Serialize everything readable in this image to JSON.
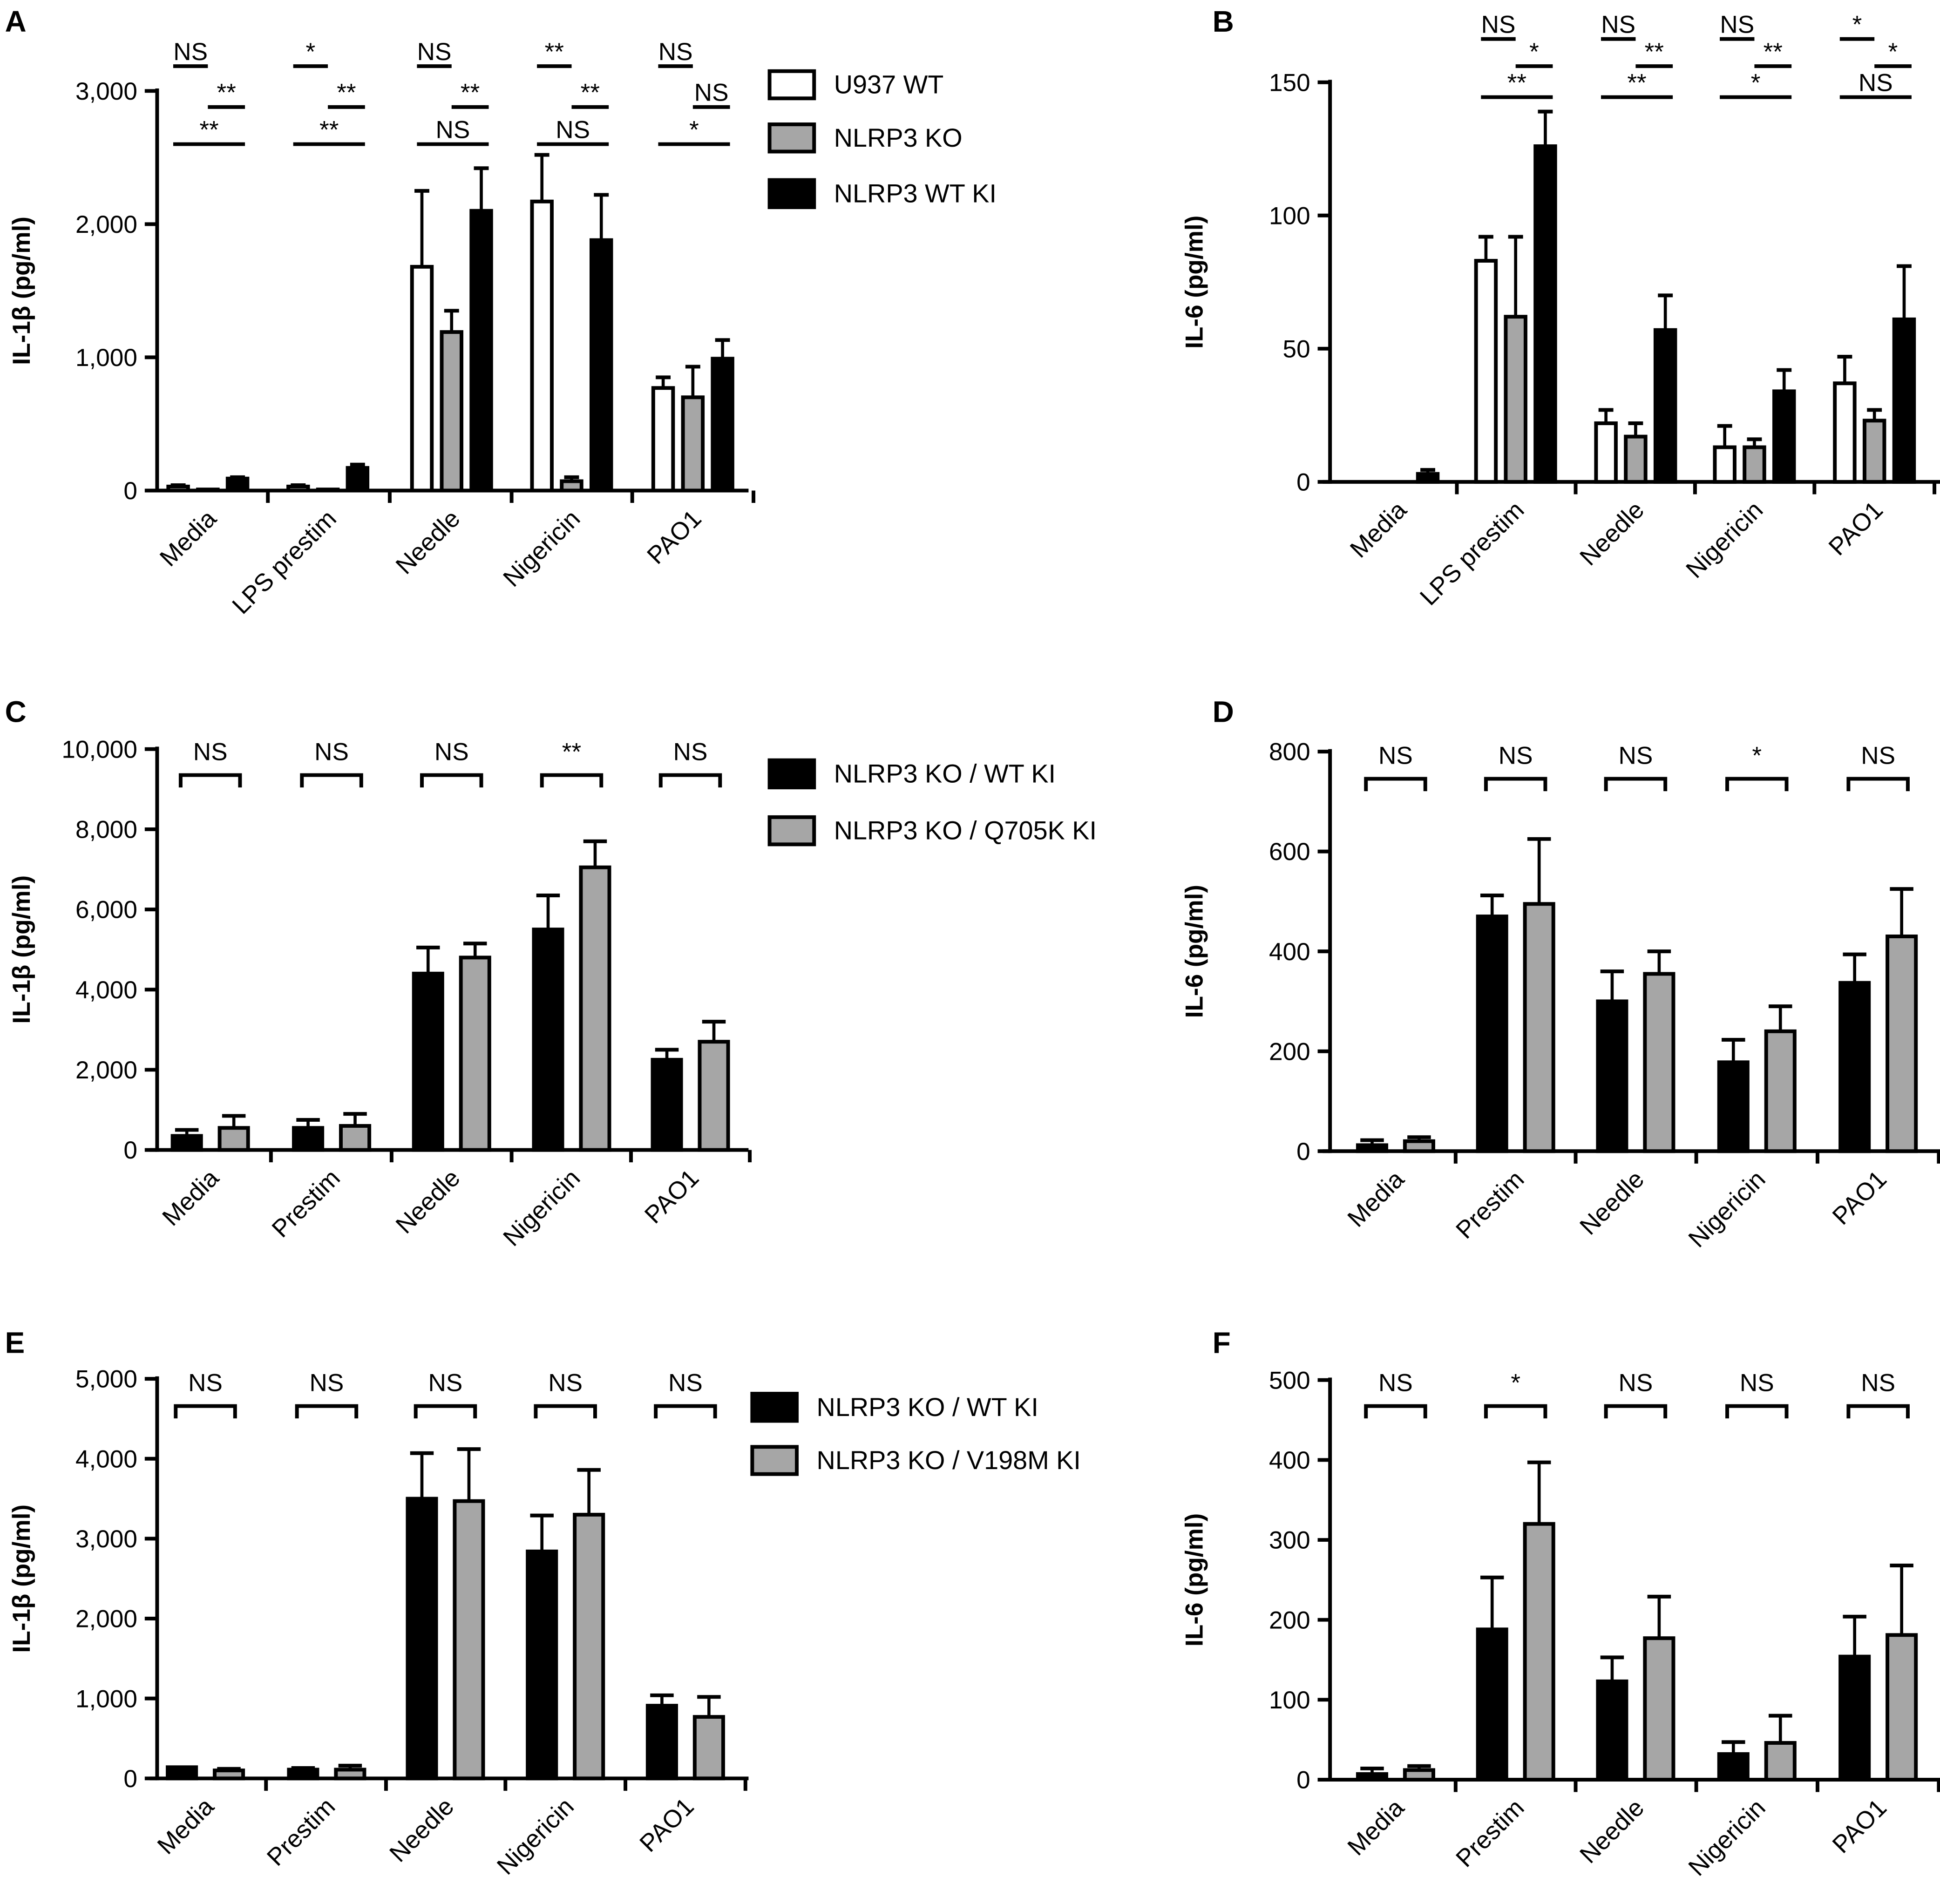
{
  "chart_data": [
    {
      "panel": "A",
      "type": "bar",
      "ylabel": "IL-1β (pg/ml)",
      "ylim": [
        0,
        3000
      ],
      "yticks": [
        "0",
        "1,000",
        "2,000",
        "3,000"
      ],
      "ytick_values": [
        0,
        1000,
        2000,
        3000
      ],
      "categories": [
        "Media",
        "LPS prestim",
        "Needle",
        "Nigericin",
        "PAO1"
      ],
      "series": [
        {
          "name": "U937 WT",
          "color": "#ffffff",
          "values": [
            30,
            30,
            1680,
            2170,
            770
          ],
          "errors": [
            10,
            10,
            570,
            350,
            80
          ]
        },
        {
          "name": "NLRP3 KO",
          "color": "#a6a6a6",
          "values": [
            8,
            8,
            1190,
            70,
            700
          ],
          "errors": [
            0,
            0,
            160,
            30,
            230
          ]
        },
        {
          "name": "NLRP3 WT KI",
          "color": "#000000",
          "values": [
            90,
            170,
            2100,
            1880,
            990
          ],
          "errors": [
            10,
            25,
            320,
            340,
            140
          ]
        }
      ],
      "significance_style": "triple",
      "significance": [
        [
          "NS",
          "**",
          "**"
        ],
        [
          "*",
          "**",
          "**"
        ],
        [
          "NS",
          "**",
          "NS"
        ],
        [
          "**",
          "**",
          "NS"
        ],
        [
          "NS",
          "NS",
          "*"
        ]
      ],
      "legend": true
    },
    {
      "panel": "B",
      "type": "bar",
      "ylabel": "IL-6 (pg/ml)",
      "ylim": [
        0,
        150
      ],
      "yticks": [
        "0",
        "50",
        "100",
        "150"
      ],
      "ytick_values": [
        0,
        50,
        100,
        150
      ],
      "categories": [
        "Media",
        "LPS prestim",
        "Needle",
        "Nigericin",
        "PAO1"
      ],
      "series": [
        {
          "name": "U937 WT",
          "color": "#ffffff",
          "values": [
            0,
            83,
            22,
            13,
            37
          ],
          "errors": [
            0,
            9,
            5,
            8,
            10
          ]
        },
        {
          "name": "NLRP3 KO",
          "color": "#a6a6a6",
          "values": [
            0,
            62,
            17,
            13,
            23
          ],
          "errors": [
            0,
            30,
            5,
            3,
            4
          ]
        },
        {
          "name": "NLRP3 WT KI",
          "color": "#000000",
          "values": [
            3,
            126,
            57,
            34,
            61
          ],
          "errors": [
            1.5,
            13,
            13,
            8,
            20
          ]
        }
      ],
      "significance_style": "triple",
      "significance": [
        null,
        [
          "NS",
          "*",
          "**"
        ],
        [
          "NS",
          "**",
          "**"
        ],
        [
          "NS",
          "**",
          "*"
        ],
        [
          "*",
          "*",
          "NS"
        ]
      ],
      "legend": false
    },
    {
      "panel": "C",
      "type": "bar",
      "ylabel": "IL-1β (pg/ml)",
      "ylim": [
        0,
        10000
      ],
      "yticks": [
        "0",
        "2,000",
        "4,000",
        "6,000",
        "8,000",
        "10,000"
      ],
      "ytick_values": [
        0,
        2000,
        4000,
        6000,
        8000,
        10000
      ],
      "categories": [
        "Media",
        "Prestim",
        "Needle",
        "Nigericin",
        "PAO1"
      ],
      "series": [
        {
          "name": "NLRP3 KO / WT KI",
          "color": "#000000",
          "values": [
            350,
            550,
            4400,
            5500,
            2250
          ],
          "errors": [
            150,
            200,
            650,
            850,
            250
          ]
        },
        {
          "name": "NLRP3 KO / Q705K KI",
          "color": "#a6a6a6",
          "values": [
            550,
            600,
            4800,
            7050,
            2700
          ],
          "errors": [
            300,
            300,
            350,
            650,
            500
          ]
        }
      ],
      "significance_style": "bracket",
      "significance": [
        "NS",
        "NS",
        "NS",
        "**",
        "NS"
      ],
      "legend": true
    },
    {
      "panel": "D",
      "type": "bar",
      "ylabel": "IL-6 (pg/ml)",
      "ylim": [
        0,
        800
      ],
      "yticks": [
        "0",
        "200",
        "400",
        "600",
        "800"
      ],
      "ytick_values": [
        0,
        200,
        400,
        600,
        800
      ],
      "categories": [
        "Media",
        "Prestim",
        "Needle",
        "Nigericin",
        "PAO1"
      ],
      "series": [
        {
          "name": "NLRP3 KO / WT KI",
          "color": "#000000",
          "values": [
            12,
            470,
            300,
            178,
            337
          ],
          "errors": [
            10,
            42,
            60,
            45,
            57
          ]
        },
        {
          "name": "NLRP3 KO / Q705K KI",
          "color": "#a6a6a6",
          "values": [
            20,
            495,
            355,
            240,
            430
          ],
          "errors": [
            8,
            130,
            45,
            50,
            95
          ]
        }
      ],
      "significance_style": "bracket",
      "significance": [
        "NS",
        "NS",
        "NS",
        "*",
        "NS"
      ],
      "legend": false
    },
    {
      "panel": "E",
      "type": "bar",
      "ylabel": "IL-1β (pg/ml)",
      "ylim": [
        0,
        5000
      ],
      "yticks": [
        "0",
        "1,000",
        "2,000",
        "3,000",
        "4,000",
        "5,000"
      ],
      "ytick_values": [
        0,
        1000,
        2000,
        3000,
        4000,
        5000
      ],
      "categories": [
        "Media",
        "Prestim",
        "Needle",
        "Nigericin",
        "PAO1"
      ],
      "series": [
        {
          "name": "NLRP3 KO / WT KI",
          "color": "#000000",
          "values": [
            140,
            110,
            3500,
            2840,
            910
          ],
          "errors": [
            0,
            20,
            570,
            450,
            130
          ]
        },
        {
          "name": "NLRP3 KO / V198M KI",
          "color": "#a6a6a6",
          "values": [
            100,
            110,
            3470,
            3300,
            770
          ],
          "errors": [
            20,
            50,
            650,
            560,
            250
          ]
        }
      ],
      "significance_style": "bracket",
      "significance": [
        "NS",
        "NS",
        "NS",
        "NS",
        "NS"
      ],
      "legend": true
    },
    {
      "panel": "F",
      "type": "bar",
      "ylabel": "IL-6 (pg/ml)",
      "ylim": [
        0,
        500
      ],
      "yticks": [
        "0",
        "100",
        "200",
        "300",
        "400",
        "500"
      ],
      "ytick_values": [
        0,
        100,
        200,
        300,
        400,
        500
      ],
      "categories": [
        "Media",
        "Prestim",
        "Needle",
        "Nigericin",
        "PAO1"
      ],
      "series": [
        {
          "name": "NLRP3 KO / WT KI",
          "color": "#000000",
          "values": [
            7,
            188,
            123,
            32,
            154
          ],
          "errors": [
            7,
            65,
            30,
            15,
            50
          ]
        },
        {
          "name": "NLRP3 KO / V198M KI",
          "color": "#a6a6a6",
          "values": [
            12,
            320,
            177,
            46,
            181
          ],
          "errors": [
            5,
            77,
            52,
            34,
            87
          ]
        }
      ],
      "significance_style": "bracket",
      "significance": [
        "NS",
        "*",
        "NS",
        "NS",
        "NS"
      ],
      "legend": false
    }
  ]
}
